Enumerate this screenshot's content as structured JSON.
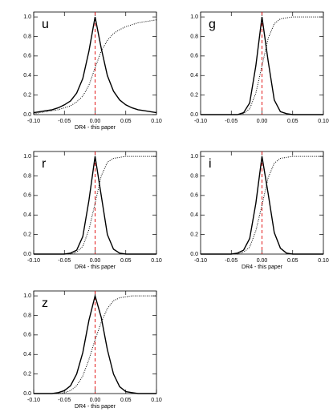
{
  "chart_data": [
    {
      "type": "line",
      "label": "u",
      "xlabel": "DR4 - this paper",
      "x": [
        -0.1,
        -0.09,
        -0.08,
        -0.07,
        -0.06,
        -0.05,
        -0.04,
        -0.03,
        -0.02,
        -0.01,
        0,
        0.01,
        0.02,
        0.03,
        0.04,
        0.05,
        0.06,
        0.07,
        0.08,
        0.09,
        0.1
      ],
      "series": [
        {
          "color": "#000000",
          "style": "solid",
          "values": [
            0.02,
            0.03,
            0.04,
            0.05,
            0.07,
            0.1,
            0.14,
            0.22,
            0.37,
            0.65,
            1.0,
            0.68,
            0.4,
            0.24,
            0.15,
            0.1,
            0.07,
            0.05,
            0.04,
            0.03,
            0.02
          ]
        },
        {
          "color": "#000000",
          "style": "dotted",
          "values": [
            0.01,
            0.02,
            0.03,
            0.04,
            0.05,
            0.07,
            0.09,
            0.13,
            0.19,
            0.3,
            0.48,
            0.65,
            0.76,
            0.83,
            0.87,
            0.9,
            0.92,
            0.94,
            0.95,
            0.96,
            0.97
          ]
        }
      ],
      "vline": {
        "value": 0,
        "color": "#e00000"
      },
      "xlim": [
        -0.1,
        0.1
      ],
      "xticks": [
        {
          "value": -0.1,
          "label": "-0.10"
        },
        {
          "value": -0.05,
          "label": "-0.05"
        },
        {
          "value": 0,
          "label": "0.00"
        },
        {
          "value": 0.05,
          "label": "0.05"
        },
        {
          "value": 0.1,
          "label": "0.10"
        }
      ],
      "ylim": [
        0,
        1.05
      ],
      "yticks": [
        {
          "value": 0,
          "label": "0.0"
        },
        {
          "value": 0.2,
          "label": "0.2"
        },
        {
          "value": 0.4,
          "label": "0.4"
        },
        {
          "value": 0.6,
          "label": "0.6"
        },
        {
          "value": 0.8,
          "label": "0.8"
        },
        {
          "value": 1,
          "label": "1.0"
        }
      ]
    },
    {
      "type": "line",
      "label": "g",
      "x": [
        -0.1,
        -0.09,
        -0.08,
        -0.07,
        -0.06,
        -0.05,
        -0.04,
        -0.03,
        -0.02,
        -0.01,
        0,
        0.01,
        0.02,
        0.03,
        0.04,
        0.05,
        0.06,
        0.07,
        0.08,
        0.09,
        0.1
      ],
      "series": [
        {
          "color": "#000000",
          "style": "solid",
          "values": [
            0,
            0,
            0,
            0,
            0,
            0,
            0,
            0.02,
            0.12,
            0.5,
            1.0,
            0.55,
            0.15,
            0.03,
            0.01,
            0,
            0,
            0,
            0,
            0,
            0
          ]
        },
        {
          "color": "#000000",
          "style": "dotted",
          "values": [
            0,
            0,
            0,
            0,
            0,
            0,
            0,
            0.01,
            0.06,
            0.22,
            0.5,
            0.78,
            0.93,
            0.98,
            0.99,
            1,
            1,
            1,
            1,
            1,
            1
          ]
        }
      ],
      "vline": {
        "value": 0,
        "color": "#e00000"
      },
      "xlim": [
        -0.1,
        0.1
      ],
      "xticks": [
        {
          "value": -0.1,
          "label": "-0.10"
        },
        {
          "value": -0.05,
          "label": "-0.05"
        },
        {
          "value": 0,
          "label": "0.00"
        },
        {
          "value": 0.05,
          "label": "0.05"
        },
        {
          "value": 0.1,
          "label": "0.10"
        }
      ],
      "ylim": [
        0,
        1.05
      ],
      "yticks": [
        {
          "value": 0,
          "label": "0.0"
        },
        {
          "value": 0.2,
          "label": "0.2"
        },
        {
          "value": 0.4,
          "label": "0.4"
        },
        {
          "value": 0.6,
          "label": "0.6"
        },
        {
          "value": 0.8,
          "label": "0.8"
        },
        {
          "value": 1,
          "label": "1.0"
        }
      ]
    },
    {
      "type": "line",
      "label": "r",
      "xlabel": "DR4 - this paper",
      "x": [
        -0.1,
        -0.09,
        -0.08,
        -0.07,
        -0.06,
        -0.05,
        -0.04,
        -0.03,
        -0.02,
        -0.01,
        0,
        0.01,
        0.02,
        0.03,
        0.04,
        0.05,
        0.06,
        0.07,
        0.08,
        0.09,
        0.1
      ],
      "series": [
        {
          "color": "#000000",
          "style": "solid",
          "values": [
            0,
            0,
            0,
            0,
            0,
            0,
            0.01,
            0.04,
            0.18,
            0.55,
            1.0,
            0.6,
            0.2,
            0.05,
            0.01,
            0,
            0,
            0,
            0,
            0,
            0
          ]
        },
        {
          "color": "#000000",
          "style": "dotted",
          "values": [
            0,
            0,
            0,
            0,
            0,
            0,
            0,
            0.02,
            0.08,
            0.25,
            0.52,
            0.8,
            0.94,
            0.98,
            0.99,
            1,
            1,
            1,
            1,
            1,
            1
          ]
        }
      ],
      "vline": {
        "value": 0,
        "color": "#e00000"
      },
      "xlim": [
        -0.1,
        0.1
      ],
      "xticks": [
        {
          "value": -0.1,
          "label": "-0.10"
        },
        {
          "value": -0.05,
          "label": "-0.05"
        },
        {
          "value": 0,
          "label": "0.00"
        },
        {
          "value": 0.05,
          "label": "0.05"
        },
        {
          "value": 0.1,
          "label": "0.10"
        }
      ],
      "ylim": [
        0,
        1.05
      ],
      "yticks": [
        {
          "value": 0,
          "label": "0.0"
        },
        {
          "value": 0.2,
          "label": "0.2"
        },
        {
          "value": 0.4,
          "label": "0.4"
        },
        {
          "value": 0.6,
          "label": "0.6"
        },
        {
          "value": 0.8,
          "label": "0.8"
        },
        {
          "value": 1,
          "label": "1.0"
        }
      ]
    },
    {
      "type": "line",
      "label": "i",
      "xlabel": "DR4 - this paper",
      "x": [
        -0.1,
        -0.09,
        -0.08,
        -0.07,
        -0.06,
        -0.05,
        -0.04,
        -0.03,
        -0.02,
        -0.01,
        0,
        0.01,
        0.02,
        0.03,
        0.04,
        0.05,
        0.06,
        0.07,
        0.08,
        0.09,
        0.1
      ],
      "series": [
        {
          "color": "#000000",
          "style": "solid",
          "values": [
            0,
            0,
            0,
            0,
            0,
            0,
            0.01,
            0.04,
            0.16,
            0.52,
            1.0,
            0.62,
            0.22,
            0.06,
            0.01,
            0,
            0,
            0,
            0,
            0,
            0
          ]
        },
        {
          "color": "#000000",
          "style": "dotted",
          "values": [
            0,
            0,
            0,
            0,
            0,
            0,
            0,
            0.02,
            0.07,
            0.24,
            0.5,
            0.78,
            0.93,
            0.98,
            0.99,
            1,
            1,
            1,
            1,
            1,
            1
          ]
        }
      ],
      "vline": {
        "value": 0,
        "color": "#e00000"
      },
      "xlim": [
        -0.1,
        0.1
      ],
      "xticks": [
        {
          "value": -0.1,
          "label": "-0.10"
        },
        {
          "value": -0.05,
          "label": "-0.05"
        },
        {
          "value": 0,
          "label": "0.00"
        },
        {
          "value": 0.05,
          "label": "0.05"
        },
        {
          "value": 0.1,
          "label": "0.10"
        }
      ],
      "ylim": [
        0,
        1.05
      ],
      "yticks": [
        {
          "value": 0,
          "label": "0.0"
        },
        {
          "value": 0.2,
          "label": "0.2"
        },
        {
          "value": 0.4,
          "label": "0.4"
        },
        {
          "value": 0.6,
          "label": "0.6"
        },
        {
          "value": 0.8,
          "label": "0.8"
        },
        {
          "value": 1,
          "label": "1.0"
        }
      ]
    },
    {
      "type": "line",
      "label": "z",
      "xlabel": "DR4 - this paper",
      "x": [
        -0.1,
        -0.09,
        -0.08,
        -0.07,
        -0.06,
        -0.05,
        -0.04,
        -0.03,
        -0.02,
        -0.01,
        0,
        0.01,
        0.02,
        0.03,
        0.04,
        0.05,
        0.06,
        0.07,
        0.08,
        0.09,
        0.1
      ],
      "series": [
        {
          "color": "#000000",
          "style": "solid",
          "values": [
            0,
            0,
            0,
            0,
            0.01,
            0.03,
            0.08,
            0.2,
            0.42,
            0.75,
            1.0,
            0.78,
            0.45,
            0.2,
            0.07,
            0.02,
            0.01,
            0,
            0,
            0,
            0
          ]
        },
        {
          "color": "#000000",
          "style": "dotted",
          "values": [
            0,
            0,
            0,
            0,
            0,
            0.01,
            0.03,
            0.08,
            0.18,
            0.35,
            0.55,
            0.73,
            0.87,
            0.95,
            0.98,
            0.99,
            1,
            1,
            1,
            1,
            1
          ]
        }
      ],
      "vline": {
        "value": 0,
        "color": "#e00000"
      },
      "xlim": [
        -0.1,
        0.1
      ],
      "xticks": [
        {
          "value": -0.1,
          "label": "-0.10"
        },
        {
          "value": -0.05,
          "label": "-0.05"
        },
        {
          "value": 0,
          "label": "0.00"
        },
        {
          "value": 0.05,
          "label": "0.05"
        },
        {
          "value": 0.1,
          "label": "0.10"
        }
      ],
      "ylim": [
        0,
        1.05
      ],
      "yticks": [
        {
          "value": 0,
          "label": "0.0"
        },
        {
          "value": 0.2,
          "label": "0.2"
        },
        {
          "value": 0.4,
          "label": "0.4"
        },
        {
          "value": 0.6,
          "label": "0.6"
        },
        {
          "value": 0.8,
          "label": "0.8"
        },
        {
          "value": 1,
          "label": "1.0"
        }
      ]
    }
  ]
}
